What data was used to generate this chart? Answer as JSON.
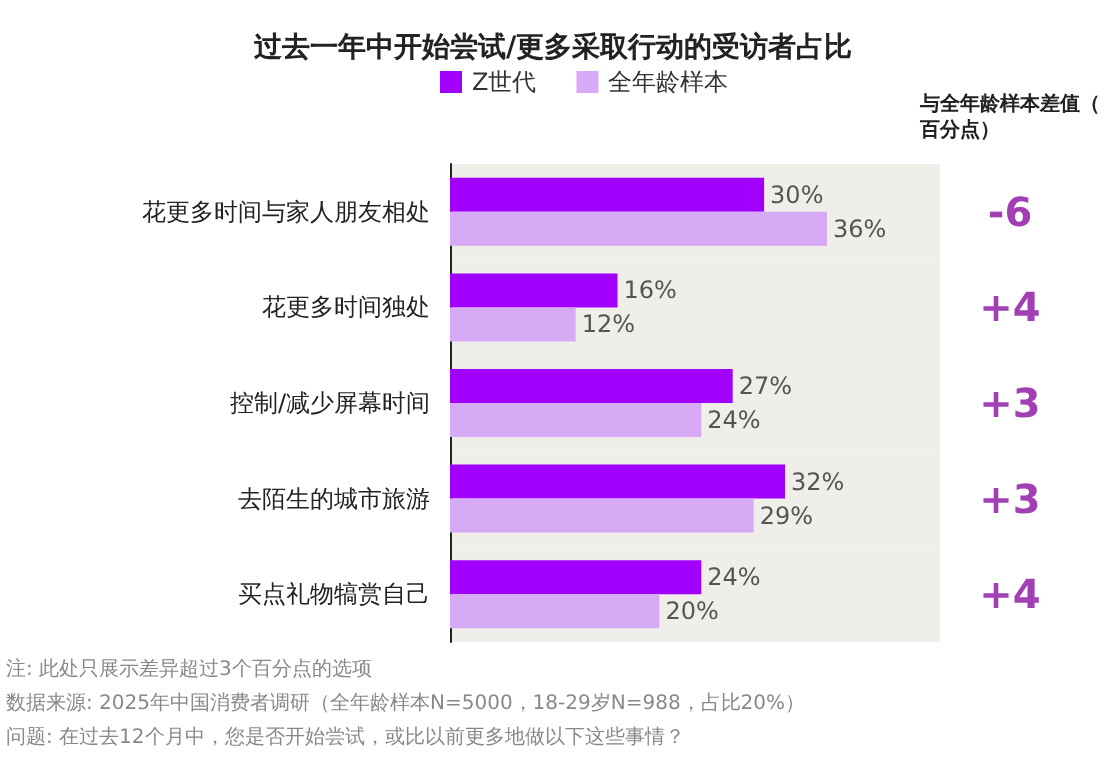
{
  "chart_data": {
    "type": "bar",
    "orientation": "horizontal",
    "title": "过去一年中开始尝试/更多采取行动的受访者占比",
    "categories": [
      "花更多时间与家人朋友相处",
      "花更多时间独处",
      "控制/减少屏幕时间",
      "去陌生的城市旅游",
      "买点礼物犒赏自己"
    ],
    "series": [
      {
        "name": "Z世代",
        "color": "#a100ff",
        "values": [
          30,
          16,
          27,
          32,
          24
        ],
        "value_labels": [
          "30%",
          "16%",
          "27%",
          "32%",
          "24%"
        ]
      },
      {
        "name": "全年龄样本",
        "color": "#d7aaf5",
        "values": [
          36,
          12,
          24,
          29,
          20
        ],
        "value_labels": [
          "36%",
          "12%",
          "24%",
          "29%",
          "20%"
        ]
      }
    ],
    "legend": "top left",
    "annotations": [
      "与全年龄样本差值（百分点）",
      "-6",
      "+4",
      "+3",
      "+3",
      "+4",
      "注: 此处只展示差异超过3个百分点的选项",
      "数据来源: 2025年中国消费者调研（全年龄样本N=5000，18-29岁N=988，占比20%）",
      "问题: 在过去12个月中，您是否开始尝试，或比以前更多地做以下这些事情？"
    ]
  }
}
